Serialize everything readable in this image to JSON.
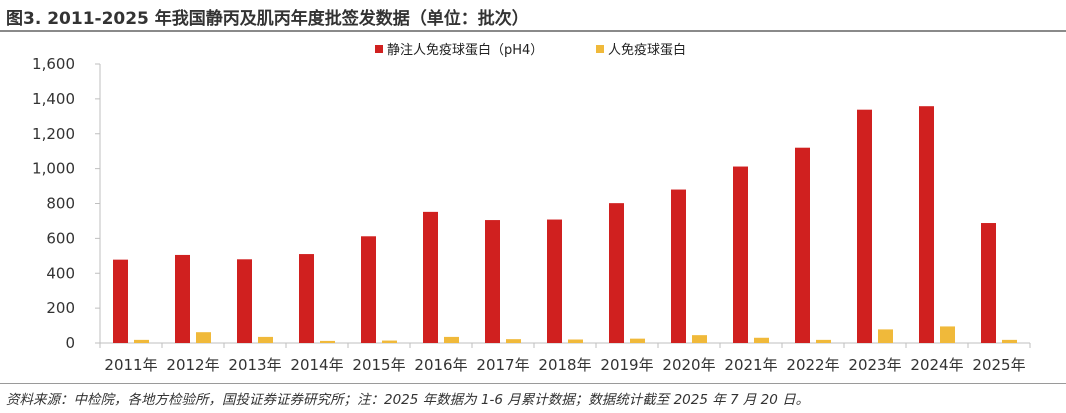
{
  "title": "图3. 2011-2025 年我国静丙及肌丙年度批签发数据（单位：批次）",
  "source": "资料来源：中检院，各地方检验所，国投证券证券研究所；注：2025 年数据为 1-6 月累计数据；数据统计截至 2025 年 7 月 20 日。",
  "chart_data": {
    "type": "bar",
    "title": "",
    "xlabel": "",
    "ylabel": "",
    "ylim": [
      0,
      1600
    ],
    "yticks": [
      0,
      200,
      400,
      600,
      800,
      1000,
      1200,
      1400,
      1600
    ],
    "ytick_labels": [
      "0",
      "200",
      "400",
      "600",
      "800",
      "1,000",
      "1,200",
      "1,400",
      "1,600"
    ],
    "grid": false,
    "legend_position": "top-center",
    "categories": [
      "2011年",
      "2012年",
      "2013年",
      "2014年",
      "2015年",
      "2016年",
      "2017年",
      "2018年",
      "2019年",
      "2020年",
      "2021年",
      "2022年",
      "2023年",
      "2024年",
      "2025年"
    ],
    "series": [
      {
        "name": "静注人免疫球蛋白（pH4）",
        "color": "#d0201f",
        "values": [
          478,
          505,
          480,
          510,
          612,
          752,
          705,
          708,
          802,
          880,
          1012,
          1120,
          1338,
          1358,
          688
        ]
      },
      {
        "name": "人免疫球蛋白",
        "color": "#f0b93a",
        "values": [
          18,
          62,
          35,
          12,
          14,
          35,
          22,
          20,
          25,
          45,
          30,
          18,
          78,
          95,
          18
        ]
      }
    ]
  }
}
